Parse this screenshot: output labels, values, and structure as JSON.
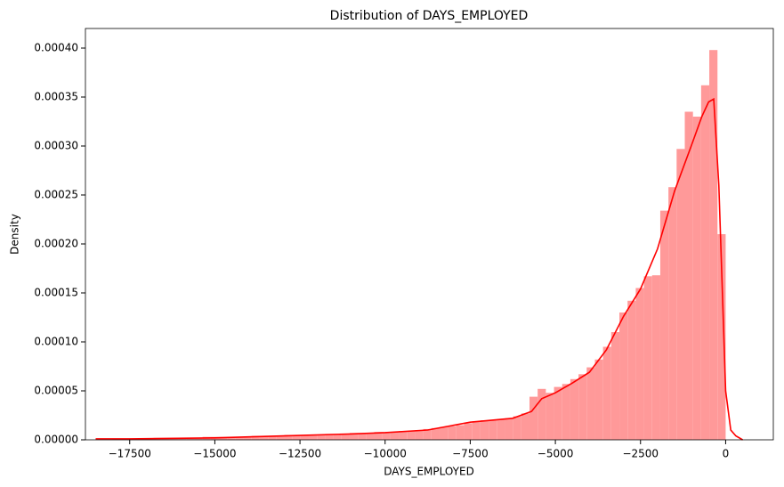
{
  "chart_data": {
    "type": "histogram",
    "title": "Distribution of DAYS_EMPLOYED",
    "xlabel": "DAYS_EMPLOYED",
    "ylabel": "Density",
    "color": "#ff9999",
    "bins": [
      -18000,
      -17760,
      -17520,
      -17280,
      -17040,
      -16800,
      -16560,
      -16320,
      -16080,
      -15840,
      -15600,
      -15360,
      -15120,
      -14880,
      -14640,
      -14400,
      -14160,
      -13920,
      -13680,
      -13440,
      -13200,
      -12960,
      -12720,
      -12480,
      -12240,
      -12000,
      -11760,
      -11520,
      -11280,
      -11040,
      -10800,
      -10560,
      -10320,
      -10080,
      -9840,
      -9600,
      -9360,
      -9120,
      -8880,
      -8640,
      -8400,
      -8160,
      -7920,
      -7680,
      -7440,
      -7200,
      -6960,
      -6720,
      -6480,
      -6240,
      -6000,
      -5760,
      -5520,
      -5280,
      -5040,
      -4800,
      -4560,
      -4320,
      -4080,
      -3840,
      -3600,
      -3360,
      -3120,
      -2880,
      -2640,
      -2400,
      -2160,
      -1920,
      -1680,
      -1440,
      -1200,
      -960,
      -720,
      -480,
      -240,
      0
    ],
    "values": [
      1e-06,
      1e-06,
      1e-06,
      1e-06,
      1e-06,
      2e-06,
      2e-06,
      2e-06,
      2e-06,
      2e-06,
      2e-06,
      3e-06,
      3e-06,
      3e-06,
      3e-06,
      3e-06,
      3e-06,
      4e-06,
      4e-06,
      4e-06,
      4e-06,
      5e-06,
      5e-06,
      5e-06,
      5e-06,
      5e-06,
      6e-06,
      6e-06,
      6e-06,
      7e-06,
      7e-06,
      7e-06,
      8e-06,
      8e-06,
      8e-06,
      9e-06,
      9e-06,
      1e-05,
      1.1e-05,
      1.2e-05,
      1.3e-05,
      1.4e-05,
      1.5e-05,
      1.7e-05,
      1.9e-05,
      2e-05,
      2e-05,
      2.1e-05,
      2.2e-05,
      2.4e-05,
      2.7e-05,
      4.4e-05,
      5.2e-05,
      4.8e-05,
      5.4e-05,
      5.7e-05,
      6.2e-05,
      6.7e-05,
      7.4e-05,
      8.2e-05,
      9.5e-05,
      0.00011,
      0.00013,
      0.000142,
      0.000155,
      0.000167,
      0.000168,
      0.000234,
      0.000258,
      0.000297,
      0.000335,
      0.00033,
      0.000362,
      0.000398,
      0.00021
    ],
    "line": {
      "color": "#ff0000",
      "x": [
        -18500,
        -17500,
        -15000,
        -14000,
        -12500,
        -11000,
        -10000,
        -8750,
        -7500,
        -6250,
        -5700,
        -5400,
        -5000,
        -4500,
        -4000,
        -3500,
        -3000,
        -2500,
        -2000,
        -1500,
        -1000,
        -700,
        -500,
        -350,
        -200,
        0,
        150,
        300,
        500
      ],
      "values": [
        1e-06,
        1e-06,
        2e-06,
        3e-06,
        4.5e-06,
        6e-06,
        7.3e-06,
        1e-05,
        1.8e-05,
        2.2e-05,
        2.9e-05,
        4.2e-05,
        4.8e-05,
        5.8e-05,
        6.9e-05,
        9.2e-05,
        0.000126,
        0.000154,
        0.000195,
        0.000254,
        0.000301,
        0.00033,
        0.000345,
        0.000348,
        0.00026,
        5e-05,
        1e-05,
        4e-06,
        0
      ]
    },
    "xlim": [
      -18800,
      1400
    ],
    "ylim": [
      0,
      0.00042
    ],
    "xticks": [
      {
        "value": -17500,
        "label": "−17500"
      },
      {
        "value": -15000,
        "label": "−15000"
      },
      {
        "value": -12500,
        "label": "−12500"
      },
      {
        "value": -10000,
        "label": "−10000"
      },
      {
        "value": -7500,
        "label": "−7500"
      },
      {
        "value": -5000,
        "label": "−5000"
      },
      {
        "value": -2500,
        "label": "−2500"
      },
      0
    ],
    "yticks": [
      {
        "value": 0,
        "label": "0.00000"
      },
      {
        "value": 5e-05,
        "label": "0.00005"
      },
      {
        "value": 0.0001,
        "label": "0.00010"
      },
      {
        "value": 0.00015,
        "label": "0.00015"
      },
      {
        "value": 0.0002,
        "label": "0.00020"
      },
      {
        "value": 0.00025,
        "label": "0.00025"
      },
      {
        "value": 0.0003,
        "label": "0.00030"
      },
      {
        "value": 0.00035,
        "label": "0.00035"
      },
      {
        "value": 0.0004,
        "label": "0.00040"
      }
    ]
  }
}
